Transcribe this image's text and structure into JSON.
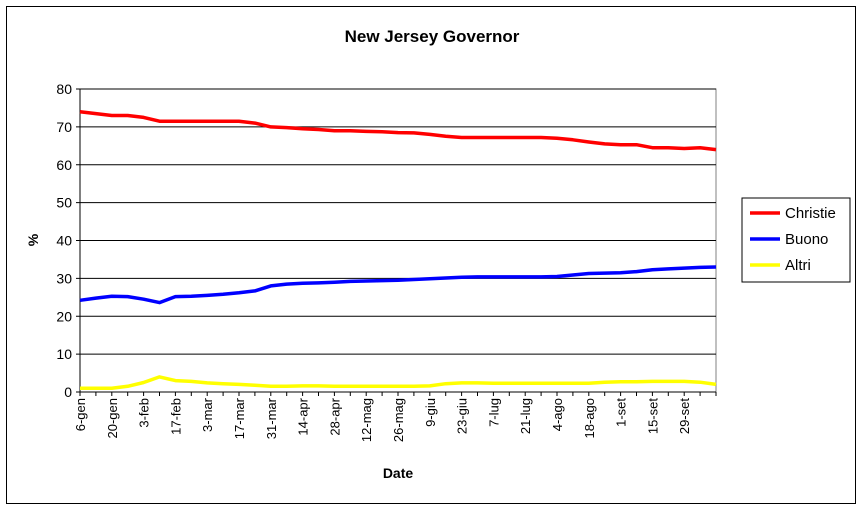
{
  "chart_data": {
    "type": "line",
    "title": "New Jersey Governor",
    "xlabel": "Date",
    "ylabel": "%",
    "ylim": [
      0,
      80
    ],
    "yticks": [
      0,
      10,
      20,
      30,
      40,
      50,
      60,
      70,
      80
    ],
    "grid": true,
    "legend": "right",
    "x_tick_labels": [
      "6-gen",
      "20-gen",
      "3-feb",
      "17-feb",
      "3-mar",
      "17-mar",
      "31-mar",
      "14-apr",
      "28-apr",
      "12-mag",
      "26-mag",
      "9-giu",
      "23-giu",
      "7-lug",
      "21-lug",
      "4-ago",
      "18-ago",
      "1-set",
      "15-set",
      "29-set"
    ],
    "x": [
      "6-gen",
      "13-gen",
      "20-gen",
      "27-gen",
      "3-feb",
      "10-feb",
      "17-feb",
      "24-feb",
      "3-mar",
      "10-mar",
      "17-mar",
      "24-mar",
      "31-mar",
      "7-apr",
      "14-apr",
      "21-apr",
      "28-apr",
      "5-mag",
      "12-mag",
      "19-mag",
      "26-mag",
      "2-giu",
      "9-giu",
      "16-giu",
      "23-giu",
      "30-giu",
      "7-lug",
      "14-lug",
      "21-lug",
      "28-lug",
      "4-ago",
      "11-ago",
      "18-ago",
      "25-ago",
      "1-set",
      "8-set",
      "15-set",
      "22-set",
      "29-set",
      "6-ott",
      "13-ott"
    ],
    "series": [
      {
        "name": "Christie",
        "color": "#ff0000",
        "values": [
          74,
          73.5,
          73,
          73,
          72.5,
          71.5,
          71.5,
          71.5,
          71.5,
          71.5,
          71.5,
          71,
          70,
          69.8,
          69.5,
          69.3,
          69,
          69,
          68.8,
          68.7,
          68.5,
          68.4,
          68,
          67.5,
          67.2,
          67.2,
          67.2,
          67.2,
          67.2,
          67.2,
          67,
          66.6,
          66,
          65.5,
          65.3,
          65.3,
          64.5,
          64.5,
          64.3,
          64.5,
          64
        ]
      },
      {
        "name": "Buono",
        "color": "#0000ff",
        "values": [
          24.2,
          24.8,
          25.3,
          25.2,
          24.5,
          23.6,
          25.2,
          25.3,
          25.5,
          25.8,
          26.2,
          26.7,
          28,
          28.5,
          28.7,
          28.8,
          29,
          29.2,
          29.3,
          29.4,
          29.5,
          29.7,
          29.9,
          30.1,
          30.3,
          30.4,
          30.4,
          30.4,
          30.4,
          30.4,
          30.5,
          30.9,
          31.3,
          31.4,
          31.5,
          31.8,
          32.3,
          32.5,
          32.7,
          32.9,
          33
        ]
      },
      {
        "name": "Altri",
        "color": "#ffff00",
        "values": [
          1,
          1,
          1,
          1.5,
          2.5,
          4,
          3,
          2.8,
          2.4,
          2.2,
          2,
          1.8,
          1.5,
          1.5,
          1.6,
          1.6,
          1.5,
          1.5,
          1.5,
          1.5,
          1.5,
          1.5,
          1.6,
          2.2,
          2.4,
          2.4,
          2.3,
          2.3,
          2.3,
          2.3,
          2.3,
          2.3,
          2.3,
          2.6,
          2.7,
          2.7,
          2.8,
          2.8,
          2.8,
          2.6,
          2
        ]
      }
    ]
  }
}
